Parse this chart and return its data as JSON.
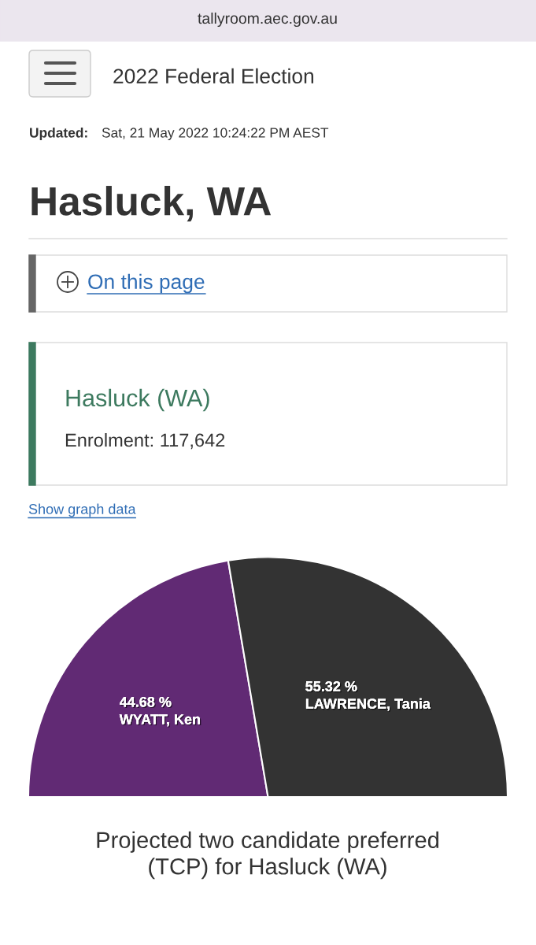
{
  "chart_data": {
    "type": "pie",
    "title": "Projected two candidate preferred\n(TCP) for Hasluck (WA)",
    "categories": [
      "WYATT, Ken",
      "LAWRENCE, Tania"
    ],
    "values": [
      44.68,
      55.32
    ],
    "colors": [
      "#612a74",
      "#333333"
    ],
    "value_labels": [
      "44.68 %",
      "55.32 %"
    ],
    "annotations": [
      "tallyroom.aec.gov.au",
      "2022 Federal Election",
      "Updated:",
      "Sat, 21 May 2022 10:24:22 PM AEST",
      "Hasluck, WA",
      "On this page",
      "Hasluck (WA)",
      "Enrolment: 117,642",
      "Show graph data"
    ]
  }
}
